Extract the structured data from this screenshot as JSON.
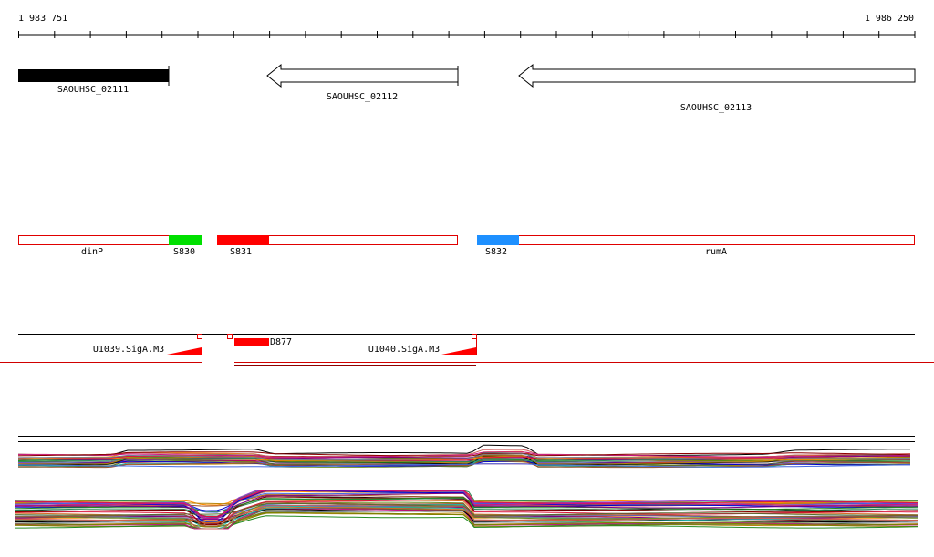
{
  "ruler": {
    "start": "1 983 751",
    "end": "1 986 250"
  },
  "genes": [
    {
      "label": "SAOUHSC_02111"
    },
    {
      "label": "SAOUHSC_02112"
    },
    {
      "label": "SAOUHSC_02113"
    }
  ],
  "segments": [
    {
      "label": "dinP"
    },
    {
      "label": "S830"
    },
    {
      "label": "S831"
    },
    {
      "label": "S832"
    },
    {
      "label": "rumA"
    }
  ],
  "features": [
    {
      "label": "U1039.SigA.M3"
    },
    {
      "label": "D877"
    },
    {
      "label": "U1040.SigA.M3"
    }
  ]
}
